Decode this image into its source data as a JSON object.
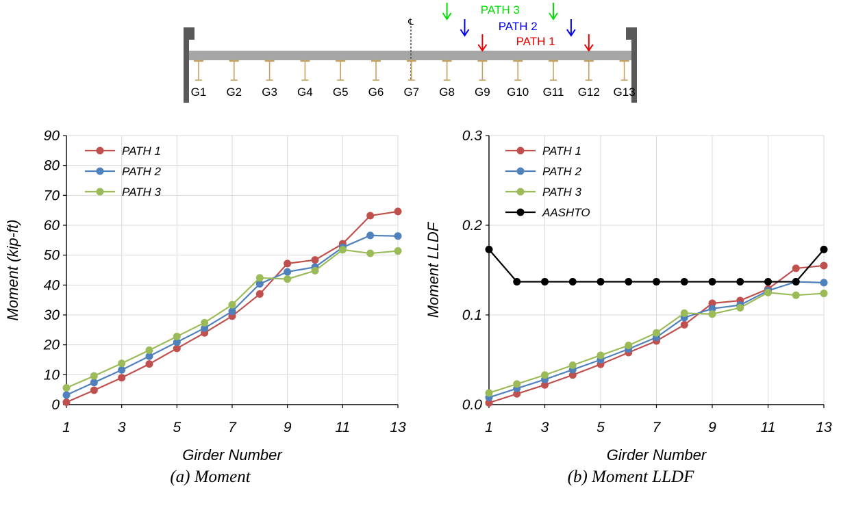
{
  "bridge_diagram": {
    "centerline_symbol": "℄",
    "girders": [
      "G1",
      "G2",
      "G3",
      "G4",
      "G5",
      "G6",
      "G7",
      "G8",
      "G9",
      "G10",
      "G11",
      "G12",
      "G13"
    ],
    "load_paths": [
      {
        "label": "PATH 3",
        "color": "#00dd00",
        "from_girder": 8,
        "to_girder": 11
      },
      {
        "label": "PATH 2",
        "color": "#0000ee",
        "from_girder": 8.5,
        "to_girder": 11.5
      },
      {
        "label": "PATH 1",
        "color": "#ee0000",
        "from_girder": 9,
        "to_girder": 12
      }
    ]
  },
  "chart_data": [
    {
      "type": "line",
      "title": "",
      "xlabel": "Girder Number",
      "ylabel": "Moment (kip-ft)",
      "caption": "(a) Moment",
      "x": [
        1,
        2,
        3,
        4,
        5,
        6,
        7,
        8,
        9,
        10,
        11,
        12,
        13
      ],
      "xlim": [
        1,
        13
      ],
      "xticks": [
        1,
        3,
        5,
        7,
        9,
        11,
        13
      ],
      "xtick_labels": [
        "1",
        "3",
        "5",
        "7",
        "9",
        "11",
        "13"
      ],
      "ylim": [
        0,
        90
      ],
      "yticks": [
        0,
        10,
        20,
        30,
        40,
        50,
        60,
        70,
        80,
        90
      ],
      "ytick_labels": [
        "0",
        "10",
        "20",
        "30",
        "40",
        "50",
        "60",
        "70",
        "80",
        "90"
      ],
      "grid": true,
      "legend": "top-left",
      "series": [
        {
          "name": "PATH 1",
          "color": "#c0504d",
          "values": [
            0.8,
            4.8,
            9.0,
            13.6,
            18.8,
            24.0,
            29.6,
            37.0,
            47.2,
            48.4,
            53.8,
            63.2,
            64.6
          ]
        },
        {
          "name": "PATH 2",
          "color": "#4f81bd",
          "values": [
            3.2,
            7.4,
            11.6,
            16.2,
            20.9,
            25.6,
            31.2,
            40.4,
            44.4,
            46.0,
            52.6,
            56.6,
            56.4
          ]
        },
        {
          "name": "PATH 3",
          "color": "#9bbb59",
          "values": [
            5.6,
            9.6,
            13.8,
            18.2,
            22.8,
            27.4,
            33.4,
            42.4,
            42.0,
            44.8,
            51.8,
            50.6,
            51.4
          ]
        }
      ]
    },
    {
      "type": "line",
      "title": "",
      "xlabel": "Girder Number",
      "ylabel": "Moment LLDF",
      "caption": "(b) Moment LLDF",
      "x": [
        1,
        2,
        3,
        4,
        5,
        6,
        7,
        8,
        9,
        10,
        11,
        12,
        13
      ],
      "xlim": [
        1,
        13
      ],
      "xticks": [
        1,
        3,
        5,
        7,
        9,
        11,
        13
      ],
      "xtick_labels": [
        "1",
        "3",
        "5",
        "7",
        "9",
        "11",
        "13"
      ],
      "ylim": [
        0,
        0.3
      ],
      "yticks": [
        0,
        0.1,
        0.2,
        0.3
      ],
      "ytick_labels": [
        "0.0",
        "0.1",
        "0.2",
        "0.3"
      ],
      "grid": true,
      "legend": "top-left",
      "series": [
        {
          "name": "PATH 1",
          "color": "#c0504d",
          "values": [
            0.002,
            0.012,
            0.022,
            0.033,
            0.045,
            0.058,
            0.071,
            0.089,
            0.113,
            0.116,
            0.129,
            0.152,
            0.155
          ]
        },
        {
          "name": "PATH 2",
          "color": "#4f81bd",
          "values": [
            0.008,
            0.018,
            0.028,
            0.039,
            0.05,
            0.062,
            0.075,
            0.097,
            0.107,
            0.111,
            0.127,
            0.137,
            0.136
          ]
        },
        {
          "name": "PATH 3",
          "color": "#9bbb59",
          "values": [
            0.013,
            0.023,
            0.033,
            0.044,
            0.055,
            0.066,
            0.08,
            0.102,
            0.101,
            0.108,
            0.125,
            0.122,
            0.124
          ]
        },
        {
          "name": "AASHTO",
          "color": "#000000",
          "values": [
            0.173,
            0.137,
            0.137,
            0.137,
            0.137,
            0.137,
            0.137,
            0.137,
            0.137,
            0.137,
            0.137,
            0.137,
            0.173
          ]
        }
      ]
    }
  ]
}
